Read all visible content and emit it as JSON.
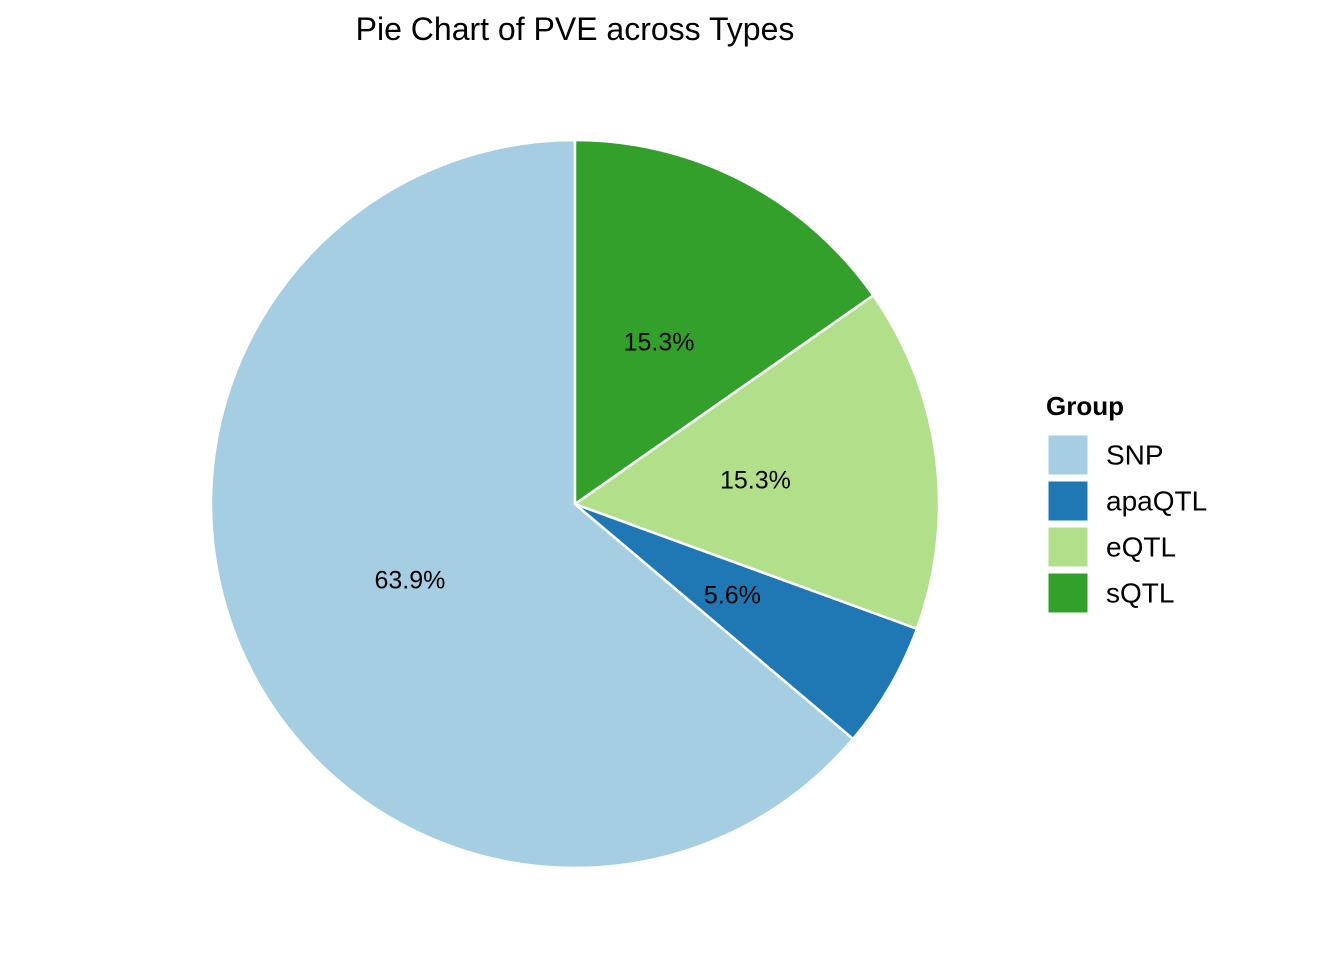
{
  "chart_data": {
    "type": "pie",
    "title": "Pie Chart of PVE across Types",
    "legend": {
      "title": "Group",
      "placement": "right"
    },
    "slices": [
      {
        "name": "SNP",
        "value": 63.9,
        "label": "63.9%",
        "color": "#A6CEE3"
      },
      {
        "name": "apaQTL",
        "value": 5.6,
        "label": "5.6%",
        "color": "#1F78B4"
      },
      {
        "name": "eQTL",
        "value": 15.3,
        "label": "15.3%",
        "color": "#B2DF8A"
      },
      {
        "name": "sQTL",
        "value": 15.3,
        "label": "15.3%",
        "color": "#33A02C"
      }
    ],
    "start": "12 o'clock",
    "direction": "counterclockwise",
    "slice_border_color": "#ffffff"
  }
}
